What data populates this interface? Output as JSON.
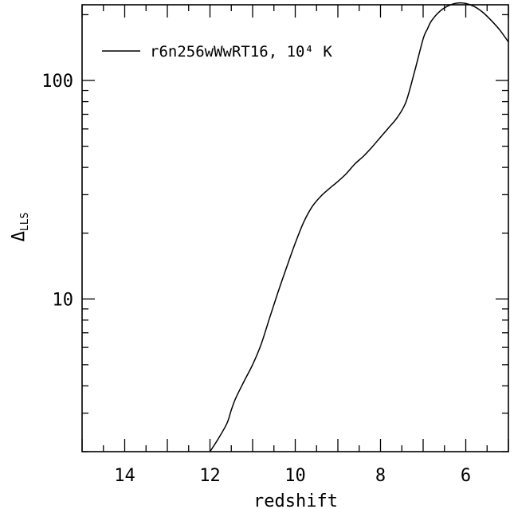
{
  "chart_data": {
    "type": "line",
    "xlabel": "redshift",
    "ylabel_symbol": "Δ",
    "ylabel_subscript": "LLS",
    "x_reversed": true,
    "xlim": [
      15,
      5
    ],
    "ylim": [
      2,
      250
    ],
    "y_scale": "log",
    "x_ticks": [
      {
        "value": 14,
        "label": "14"
      },
      {
        "value": 12,
        "label": "12"
      },
      {
        "value": 10,
        "label": "10"
      },
      {
        "value": 8,
        "label": "8"
      },
      {
        "value": 6,
        "label": "6"
      }
    ],
    "y_ticks": [
      {
        "value": 10,
        "label": "10"
      },
      {
        "value": 100,
        "label": "100"
      }
    ],
    "legend_position": "top-left",
    "series": [
      {
        "name": "r6n256wWwRT16, 10⁴ K",
        "x": [
          12.0,
          11.8,
          11.6,
          11.5,
          11.4,
          11.2,
          11.0,
          10.8,
          10.6,
          10.4,
          10.2,
          10.0,
          9.8,
          9.6,
          9.4,
          9.2,
          9.0,
          8.8,
          8.6,
          8.4,
          8.2,
          8.0,
          7.8,
          7.6,
          7.4,
          7.2,
          7.0,
          6.9,
          6.8,
          6.6,
          6.4,
          6.2,
          6.0,
          5.8,
          5.6,
          5.4,
          5.2,
          5.0
        ],
        "y": [
          2.0,
          2.3,
          2.7,
          3.1,
          3.5,
          4.2,
          5.0,
          6.2,
          8.2,
          10.8,
          14.0,
          18.0,
          22.5,
          26.5,
          29.5,
          32.0,
          34.5,
          37.5,
          41.5,
          45.0,
          49.5,
          55.0,
          61.0,
          68.0,
          80.0,
          110.0,
          155.0,
          172.0,
          188.0,
          208.0,
          220.0,
          226.0,
          225.0,
          218.0,
          205.0,
          188.0,
          170.0,
          150.0
        ]
      }
    ]
  }
}
